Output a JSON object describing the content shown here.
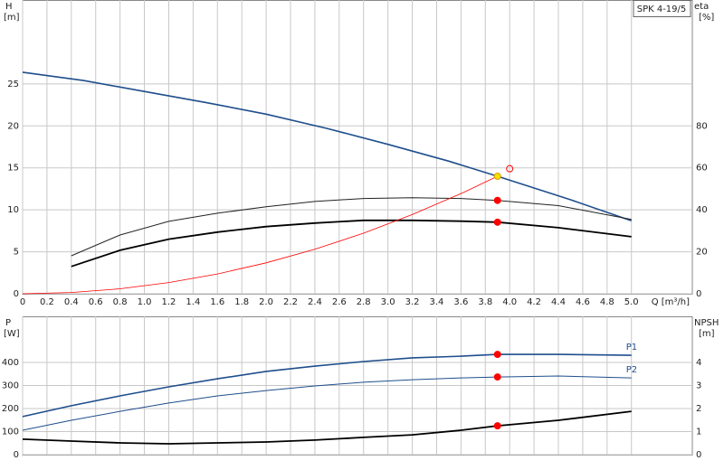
{
  "chart_data": [
    {
      "type": "line",
      "title": "SPK 4-19/5",
      "ylabel": "H",
      "yunit": "[m]",
      "y2label": "eta",
      "y2unit": "[%]",
      "xlabel": "Q [m³/h]",
      "xlim": [
        0,
        5.5
      ],
      "xticks": [
        0,
        0.2,
        0.4,
        0.6,
        0.8,
        {
          "value": 1,
          "label": "1.0"
        },
        1.2,
        1.4,
        1.6,
        1.8,
        {
          "value": 2,
          "label": "2.0"
        },
        2.2,
        2.4,
        2.6,
        2.8,
        {
          "value": 3,
          "label": "3.0"
        },
        3.2,
        3.4,
        3.6,
        3.8,
        {
          "value": 4,
          "label": "4.0"
        },
        4.2,
        4.4,
        4.6,
        4.8,
        {
          "value": 5,
          "label": "5.0"
        }
      ],
      "ylim": [
        0,
        35
      ],
      "yticks": [
        0,
        5,
        10,
        15,
        20,
        25
      ],
      "y2lim": [
        0,
        140
      ],
      "y2ticks": [
        0,
        20,
        40,
        60,
        80
      ],
      "grid": true,
      "show_xtick_labels": true,
      "series": [
        {
          "color": "#1f4e8c",
          "width": 1.6,
          "x": [
            0,
            0.5,
            1,
            1.5,
            2,
            2.5,
            3,
            3.5,
            3.9,
            4.5,
            5
          ],
          "values": [
            26.4,
            25.4,
            24.1,
            22.8,
            21.4,
            19.7,
            17.8,
            15.8,
            14.0,
            11.2,
            8.7
          ]
        },
        {
          "color": "#222222",
          "width": 1,
          "axis": "y2",
          "x": [
            0.4,
            0.8,
            1.2,
            1.6,
            2,
            2.4,
            2.8,
            3.2,
            3.6,
            3.9,
            4.4,
            5
          ],
          "values": [
            18.1,
            28,
            34.5,
            38.4,
            41.5,
            44,
            45.4,
            45.8,
            45.4,
            44.5,
            42,
            35.4
          ]
        },
        {
          "color": "#000000",
          "width": 1.8,
          "axis": "y2",
          "x": [
            0.4,
            0.8,
            1.2,
            1.6,
            2,
            2.4,
            2.8,
            3.2,
            3.6,
            3.9,
            4.4,
            5
          ],
          "values": [
            13,
            20.7,
            26,
            29.4,
            32,
            33.7,
            35,
            35,
            34.6,
            34.1,
            31.5,
            27.2
          ]
        },
        {
          "color": "#ff0000",
          "width": 0.8,
          "x": [
            0,
            0.4,
            0.8,
            1.2,
            1.6,
            2,
            2.4,
            2.8,
            3.2,
            3.6,
            3.9
          ],
          "values": [
            0,
            0.15,
            0.59,
            1.33,
            2.36,
            3.68,
            5.3,
            7.22,
            9.43,
            11.93,
            14.0
          ]
        },
        {
          "style": "points",
          "color": "#ff0000",
          "fill": "#ff0000",
          "axis": "y2",
          "x": [
            3.9,
            3.9
          ],
          "values": [
            44.5,
            34.1
          ]
        },
        {
          "style": "points",
          "color": "#d4a000",
          "fill": "#ffe000",
          "x": [
            3.9
          ],
          "values": [
            14.0
          ]
        },
        {
          "style": "points",
          "color": "#ff0000",
          "fill": "none",
          "x": [
            4.0
          ],
          "values": [
            14.9
          ]
        }
      ]
    },
    {
      "type": "line",
      "ylabel": "P",
      "yunit": "[W]",
      "y2label": "NPSH",
      "y2unit": "[m]",
      "xlim": [
        0,
        5.5
      ],
      "xticks": [
        0,
        0.2,
        0.4,
        0.6,
        0.8,
        1,
        1.2,
        1.4,
        1.6,
        1.8,
        2,
        2.2,
        2.4,
        2.6,
        2.8,
        3,
        3.2,
        3.4,
        3.6,
        3.8,
        4,
        4.2,
        4.4,
        4.6,
        4.8,
        5
      ],
      "ylim": [
        0,
        600
      ],
      "yticks": [
        0,
        100,
        200,
        300,
        400
      ],
      "y2lim": [
        0,
        6
      ],
      "y2ticks": [
        0,
        1,
        2,
        3,
        4
      ],
      "grid": true,
      "show_xtick_labels": false,
      "series": [
        {
          "name": "P1",
          "color": "#1f4e8c",
          "width": 1.6,
          "x": [
            0,
            0.4,
            0.8,
            1.2,
            1.6,
            2,
            2.4,
            2.8,
            3.2,
            3.6,
            3.9,
            4.4,
            5
          ],
          "values": [
            165,
            212,
            255,
            294,
            329,
            361,
            384,
            404,
            420,
            427,
            435,
            435,
            431
          ]
        },
        {
          "name": "P2",
          "color": "#1f4e8c",
          "width": 1,
          "x": [
            0,
            0.4,
            0.8,
            1.2,
            1.6,
            2,
            2.4,
            2.8,
            3.2,
            3.6,
            3.9,
            4.4,
            5
          ],
          "values": [
            106,
            149,
            188,
            224,
            255,
            278,
            298,
            314,
            325,
            333,
            337,
            341,
            333
          ]
        },
        {
          "color": "#000000",
          "width": 1.8,
          "axis": "y2",
          "x": [
            0,
            0.4,
            0.8,
            1.2,
            1.6,
            2,
            2.4,
            2.8,
            3.2,
            3.6,
            3.9,
            4.4,
            5
          ],
          "values": [
            0.67,
            0.59,
            0.51,
            0.47,
            0.51,
            0.55,
            0.63,
            0.75,
            0.86,
            1.06,
            1.25,
            1.49,
            1.88
          ]
        },
        {
          "style": "points",
          "color": "#ff0000",
          "fill": "#ff0000",
          "x": [
            3.9,
            3.9
          ],
          "values": [
            435,
            337
          ]
        },
        {
          "style": "points",
          "color": "#ff0000",
          "fill": "#ff0000",
          "axis": "y2",
          "x": [
            3.9
          ],
          "values": [
            1.25
          ]
        }
      ]
    }
  ]
}
